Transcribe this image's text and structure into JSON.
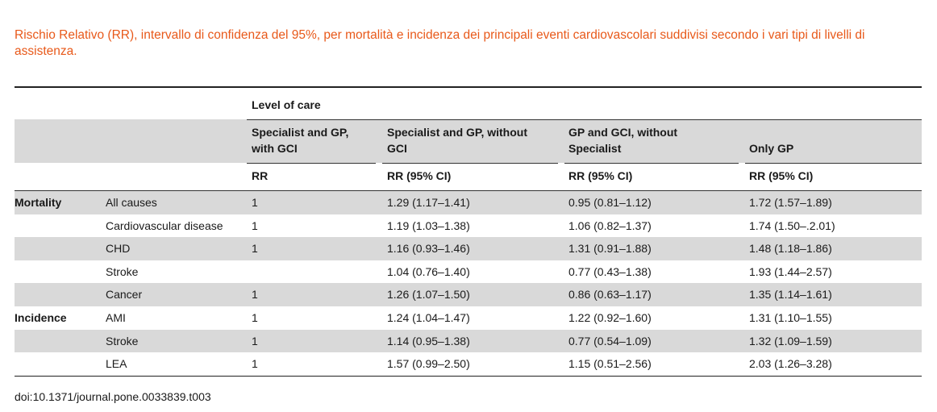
{
  "caption": "Rischio Relativo (RR), intervallo di confidenza del 95%, per mortalità e incidenza dei principali eventi cardiovascolari suddivisi secondo i vari tipi di livelli di assistenza.",
  "header": {
    "group_label": "Level of care",
    "col1": [
      "Specialist and GP,",
      "with GCI"
    ],
    "col2": [
      "Specialist and GP, without",
      "GCI"
    ],
    "col3": [
      "GP and GCI, without",
      "Specialist"
    ],
    "col4": "Only GP",
    "sub1": "RR",
    "sub2": "RR (95% CI)",
    "sub3": "RR (95% CI)",
    "sub4": "RR (95% CI)"
  },
  "rows": [
    {
      "group": "Mortality",
      "label": "All causes",
      "c1": "1",
      "c2": "1.29 (1.17–1.41)",
      "c3": "0.95 (0.81–1.12)",
      "c4": "1.72 (1.57–1.89)"
    },
    {
      "group": "",
      "label": "Cardiovascular disease",
      "c1": "1",
      "c2": "1.19 (1.03–1.38)",
      "c3": "1.06 (0.82–1.37)",
      "c4": "1.74 (1.50–.2.01)"
    },
    {
      "group": "",
      "label": "CHD",
      "c1": "1",
      "c2": "1.16 (0.93–1.46)",
      "c3": "1.31 (0.91–1.88)",
      "c4": "1.48 (1.18–1.86)"
    },
    {
      "group": "",
      "label": "Stroke",
      "c1": "",
      "c2": "1.04 (0.76–1.40)",
      "c3": "0.77 (0.43–1.38)",
      "c4": "1.93 (1.44–2.57)"
    },
    {
      "group": "",
      "label": "Cancer",
      "c1": "1",
      "c2": "1.26 (1.07–1.50)",
      "c3": "0.86 (0.63–1.17)",
      "c4": "1.35 (1.14–1.61)"
    },
    {
      "group": "Incidence",
      "label": "AMI",
      "c1": "1",
      "c2": "1.24 (1.04–1.47)",
      "c3": "1.22 (0.92–1.60)",
      "c4": "1.31 (1.10–1.55)"
    },
    {
      "group": "",
      "label": "Stroke",
      "c1": "1",
      "c2": "1.14 (0.95–1.38)",
      "c3": "0.77 (0.54–1.09)",
      "c4": "1.32 (1.09–1.59)"
    },
    {
      "group": "",
      "label": "LEA",
      "c1": "1",
      "c2": "1.57 (0.99–2.50)",
      "c3": "1.15 (0.51–2.56)",
      "c4": "2.03 (1.26–3.28)"
    }
  ],
  "doi": "doi:10.1371/journal.pone.0033839.t003"
}
